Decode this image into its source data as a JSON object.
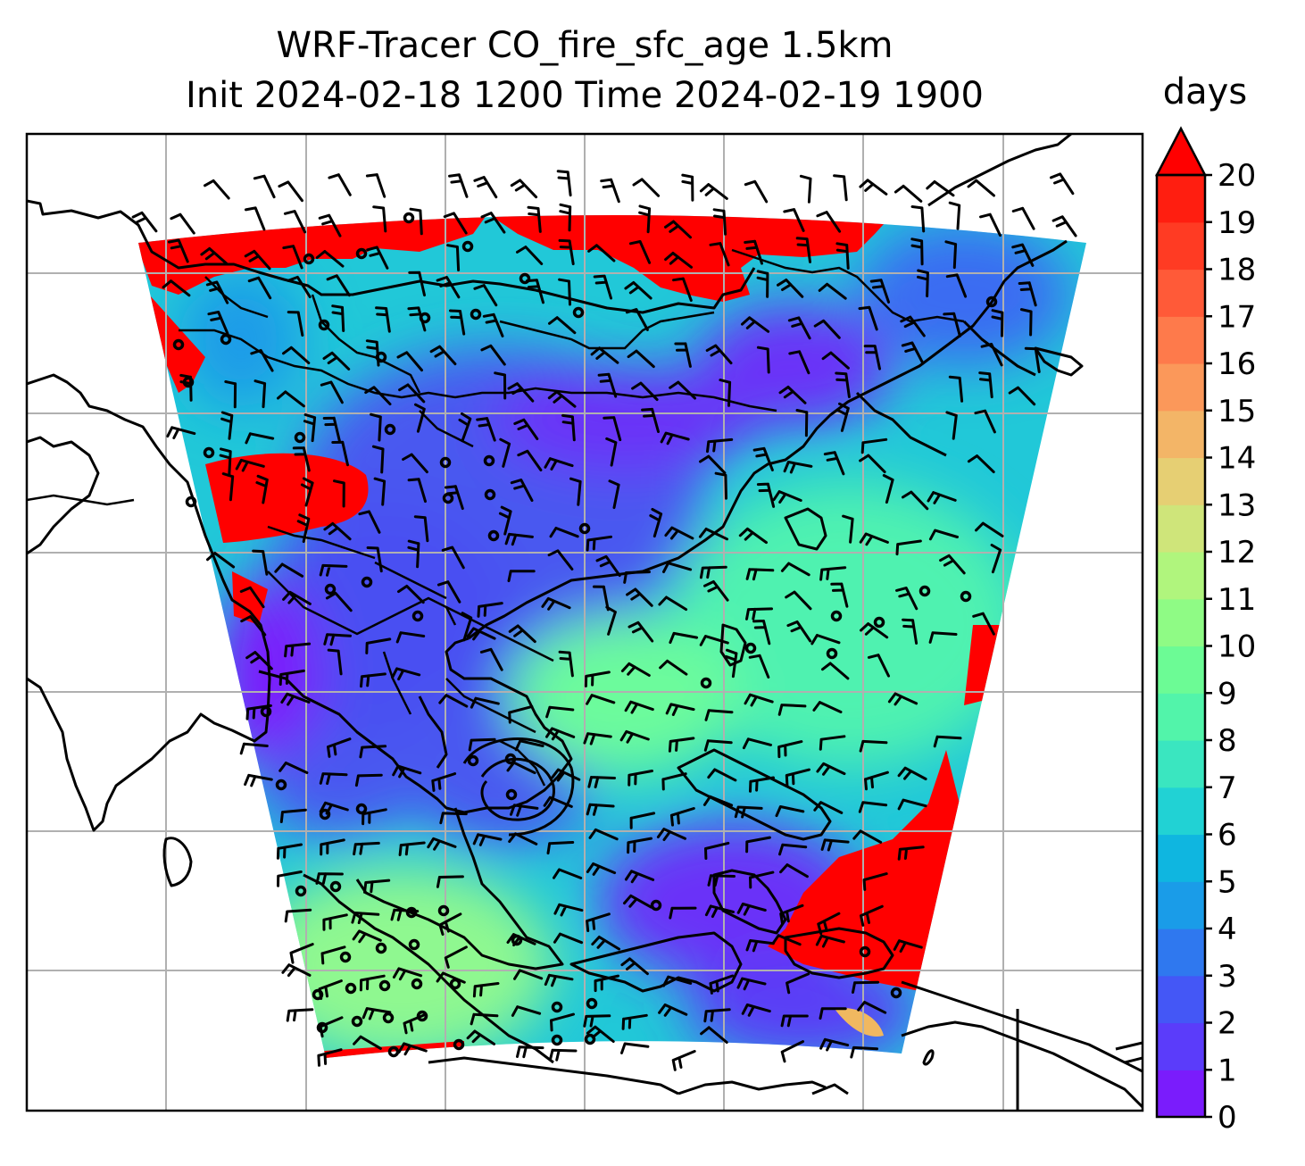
{
  "title": {
    "line1": "WRF-Tracer CO_fire_sfc_age 1.5km",
    "line2": "Init 2024-02-18 1200 Time 2024-02-19 1900"
  },
  "colorbar": {
    "unit": "days",
    "min": 0,
    "max": 20,
    "extend": "max",
    "tick_labels": [
      "0",
      "1",
      "2",
      "3",
      "4",
      "5",
      "6",
      "7",
      "8",
      "9",
      "10",
      "11",
      "12",
      "13",
      "14",
      "15",
      "16",
      "17",
      "18",
      "19",
      "20"
    ],
    "colors": [
      "#7a1cfc",
      "#5b3cfa",
      "#4457f6",
      "#2f78ef",
      "#1a9ce8",
      "#0fb6e0",
      "#21d2d4",
      "#3ae6c0",
      "#52f4aa",
      "#6cfb95",
      "#8ffb85",
      "#b0f57d",
      "#cfe57a",
      "#e6cf73",
      "#f3b567",
      "#fb985a",
      "#fe7a4b",
      "#ff5a38",
      "#ff3b23",
      "#ff1e10"
    ],
    "extend_color": "#ff0000"
  },
  "map": {
    "field": "CO_fire_sfc_age",
    "gridlines": true,
    "overlays": [
      "coastlines",
      "country-borders",
      "wind-barbs"
    ]
  }
}
